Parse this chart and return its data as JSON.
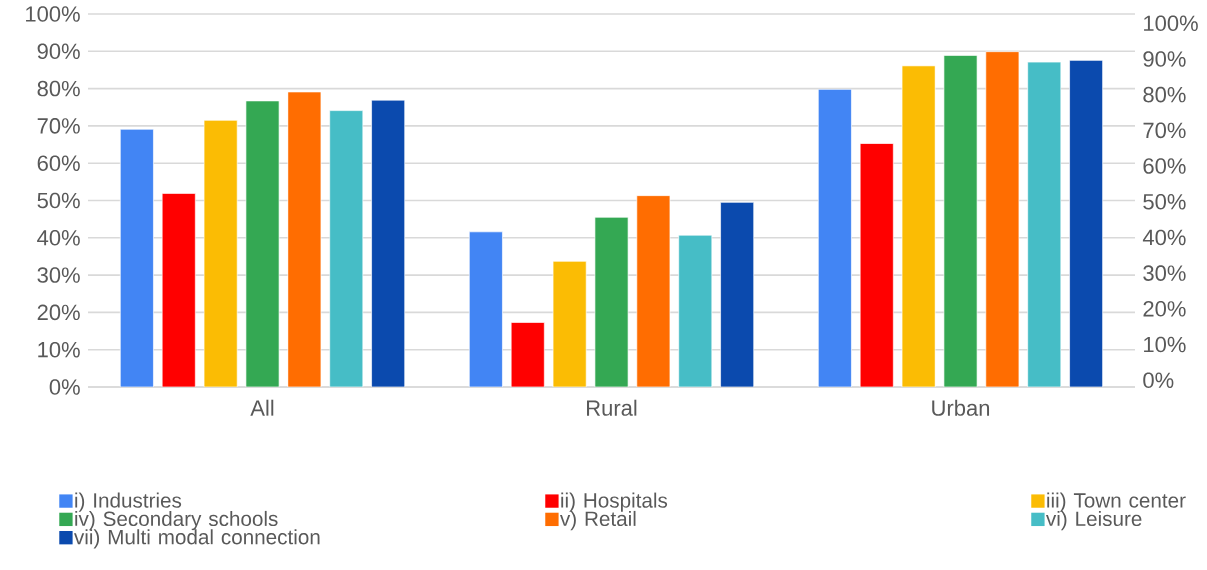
{
  "chart_data": {
    "type": "bar",
    "categories": [
      "All",
      "Rural",
      "Urban"
    ],
    "series": [
      {
        "name": "i) Industries",
        "color": "#4285f4",
        "values": [
          69.1,
          41.6,
          79.8
        ]
      },
      {
        "name": "ii) Hospitals",
        "color": "#ff0000",
        "values": [
          51.9,
          17.3,
          65.3
        ]
      },
      {
        "name": "iii) Town center",
        "color": "#fbbc04",
        "values": [
          71.5,
          33.7,
          86.1
        ]
      },
      {
        "name": "iv) Secondary schools",
        "color": "#34a853",
        "values": [
          76.7,
          45.5,
          88.9
        ]
      },
      {
        "name": "v) Retail",
        "color": "#ff6d01",
        "values": [
          79.1,
          51.3,
          89.9
        ]
      },
      {
        "name": "vi) Leisure",
        "color": "#46bdc6",
        "values": [
          74.1,
          40.7,
          87.1
        ]
      },
      {
        "name": "vii) Multi modal connection",
        "color": "#0b4aae",
        "values": [
          76.9,
          49.5,
          87.6
        ]
      }
    ],
    "ylim": [
      0,
      100
    ],
    "yticks": [
      {
        "value": 0,
        "label": "0%"
      },
      {
        "value": 10,
        "label": "10%"
      },
      {
        "value": 20,
        "label": "20%"
      },
      {
        "value": 30,
        "label": "30%"
      },
      {
        "value": 40,
        "label": "40%"
      },
      {
        "value": 50,
        "label": "50%"
      },
      {
        "value": 60,
        "label": "60%"
      },
      {
        "value": 70,
        "label": "70%"
      },
      {
        "value": 80,
        "label": "80%"
      },
      {
        "value": 90,
        "label": "90%"
      },
      {
        "value": 100,
        "label": "100%"
      }
    ],
    "y2lim": [
      -1.9,
      102.6
    ],
    "y2ticks": [
      {
        "value": 0,
        "label": "0%"
      },
      {
        "value": 10,
        "label": "10%"
      },
      {
        "value": 20,
        "label": "20%"
      },
      {
        "value": 30,
        "label": "30%"
      },
      {
        "value": 40,
        "label": "40%"
      },
      {
        "value": 50,
        "label": "50%"
      },
      {
        "value": 60,
        "label": "60%"
      },
      {
        "value": 70,
        "label": "70%"
      },
      {
        "value": 80,
        "label": "80%"
      },
      {
        "value": 90,
        "label": "90%"
      },
      {
        "value": 100,
        "label": "100%"
      }
    ],
    "grid": "y",
    "legend": "bottom"
  }
}
